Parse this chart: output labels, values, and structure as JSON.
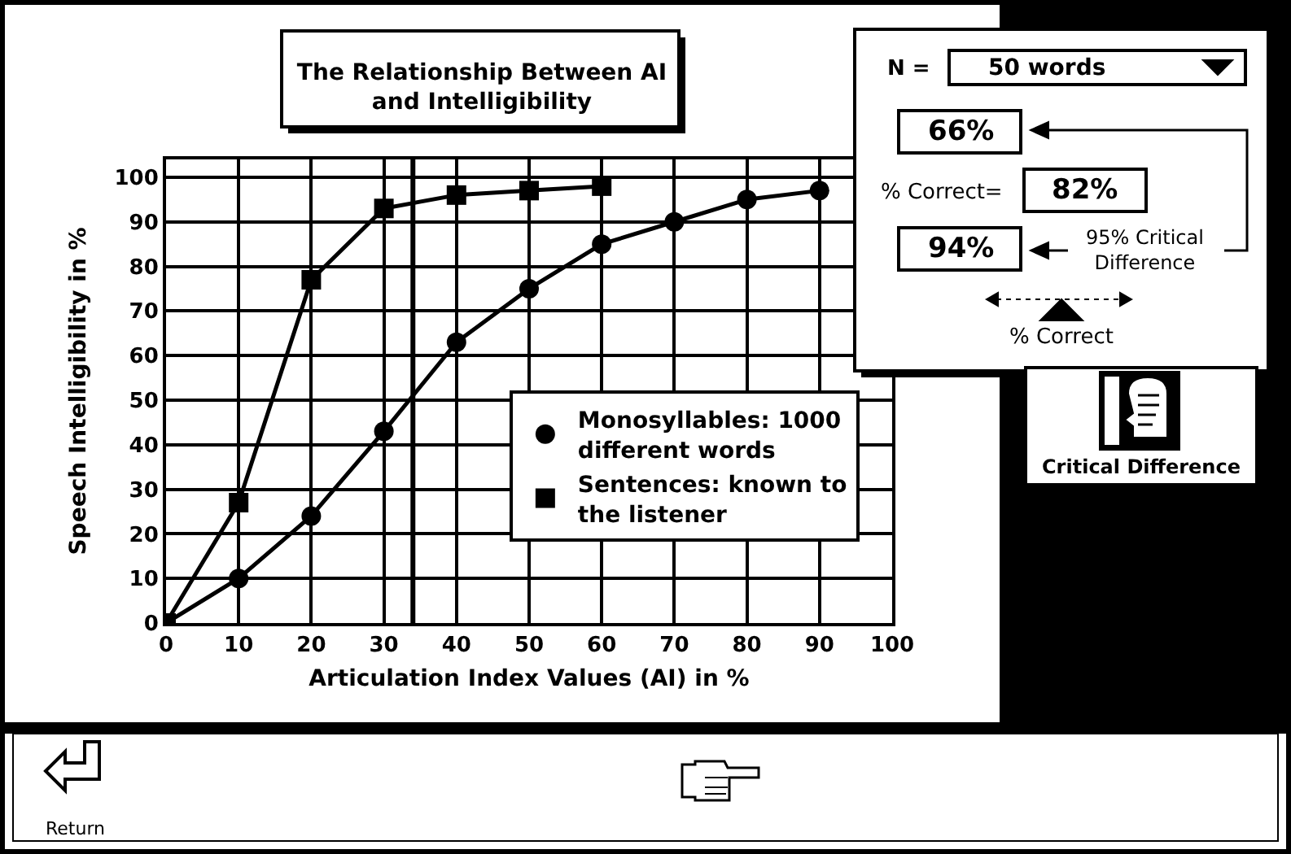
{
  "chart_data": {
    "type": "line",
    "title": "The Relationship Between AI and Intelligibility",
    "xlabel": "Articulation Index Values (AI) in %",
    "ylabel": "Speech Intelligibility in %",
    "x": [
      0,
      10,
      20,
      30,
      40,
      50,
      60,
      70,
      80,
      90
    ],
    "series": [
      {
        "name": "Sentences: known to the listener",
        "color": "#000000",
        "marker": "square",
        "values": [
          0,
          27,
          77,
          93,
          96,
          97,
          98,
          null,
          null,
          null
        ]
      },
      {
        "name": "Monosyllables: 1000 different words",
        "color": "#000000",
        "marker": "circle",
        "values": [
          0,
          10,
          24,
          43,
          63,
          75,
          85,
          90,
          95,
          97
        ]
      }
    ],
    "xlim": [
      0,
      100
    ],
    "xticks": [
      0,
      10,
      20,
      30,
      40,
      50,
      60,
      70,
      80,
      90,
      100
    ],
    "ylim": [
      0,
      104
    ],
    "yticks": [
      0,
      10,
      20,
      30,
      40,
      50,
      60,
      70,
      80,
      90,
      100
    ],
    "grid": true,
    "legend": "bottom right",
    "ref_lines": [
      {
        "axis": "x",
        "value": 34
      }
    ],
    "annotations": [
      "N =",
      "50 words",
      "66%",
      "% Correct=",
      "82%",
      "94%",
      "95% Critical Difference",
      "% Correct",
      "Critical Difference",
      "Return"
    ]
  }
}
